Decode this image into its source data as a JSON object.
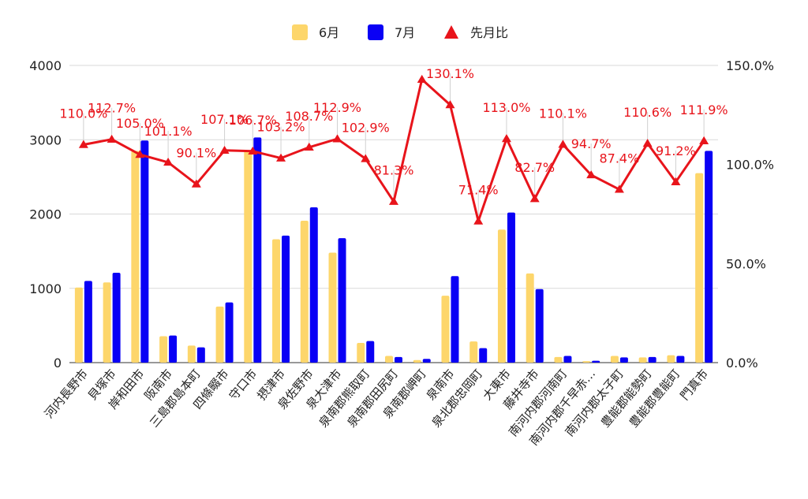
{
  "chart_data": {
    "type": "bar",
    "categories": [
      "河内長野市",
      "貝塚市",
      "岸和田市",
      "阪南市",
      "三島郡島本町",
      "四條畷市",
      "守口市",
      "摂津市",
      "泉佐野市",
      "泉大津市",
      "泉南郡熊取町",
      "泉南郡田尻町",
      "泉南郡岬町",
      "泉南市",
      "泉北郡忠岡町",
      "大東市",
      "藤井寺市",
      "南河内郡河南町",
      "南河内郡千早赤…",
      "南河内郡太子町",
      "豊能郡能勢町",
      "豊能郡豊能町",
      "門真市"
    ],
    "series": [
      {
        "name": "6月",
        "axis": "left",
        "kind": "bar",
        "color": "#fdd66b",
        "values": [
          1010,
          1080,
          2850,
          355,
          230,
          755,
          2850,
          1660,
          1910,
          1480,
          265,
          90,
          35,
          900,
          285,
          1790,
          1200,
          75,
          20,
          90,
          70,
          100,
          2550
        ]
      },
      {
        "name": "7月",
        "axis": "left",
        "kind": "bar",
        "color": "#0a00f5",
        "values": [
          1100,
          1210,
          2990,
          365,
          205,
          810,
          3030,
          1710,
          2090,
          1675,
          290,
          75,
          50,
          1165,
          195,
          2020,
          990,
          90,
          25,
          70,
          75,
          90,
          2850
        ]
      },
      {
        "name": "先月比",
        "axis": "right",
        "kind": "line",
        "color": "#e8141b",
        "values": [
          110.0,
          112.7,
          105.0,
          101.1,
          90.1,
          107.1,
          106.7,
          103.2,
          108.7,
          112.9,
          102.9,
          81.3,
          142.9,
          130.1,
          71.4,
          113.0,
          82.7,
          110.1,
          94.7,
          87.4,
          110.6,
          91.2,
          111.9
        ],
        "labels": [
          "110.0%",
          "112.7%",
          "105.0%",
          "101.1%",
          "90.1%",
          "107.1%",
          "106.7%",
          "103.2%",
          "108.7%",
          "112.9%",
          "102.9%",
          "81.3%",
          "",
          "130.1%",
          "71.4%",
          "113.0%",
          "82.7%",
          "110.1%",
          "94.7%",
          "87.4%",
          "110.6%",
          "91.2%",
          "111.9%"
        ]
      }
    ],
    "y_left": {
      "min": 0,
      "max": 4000,
      "ticks": [
        "0",
        "1000",
        "2000",
        "3000",
        "4000"
      ]
    },
    "y_right": {
      "min": 0,
      "max": 150,
      "ticks": [
        "0.0%",
        "50.0%",
        "100.0%",
        "150.0%"
      ]
    },
    "legend": {
      "position": "top",
      "entries": [
        "6月",
        "7月",
        "先月比"
      ]
    },
    "grid": true
  }
}
